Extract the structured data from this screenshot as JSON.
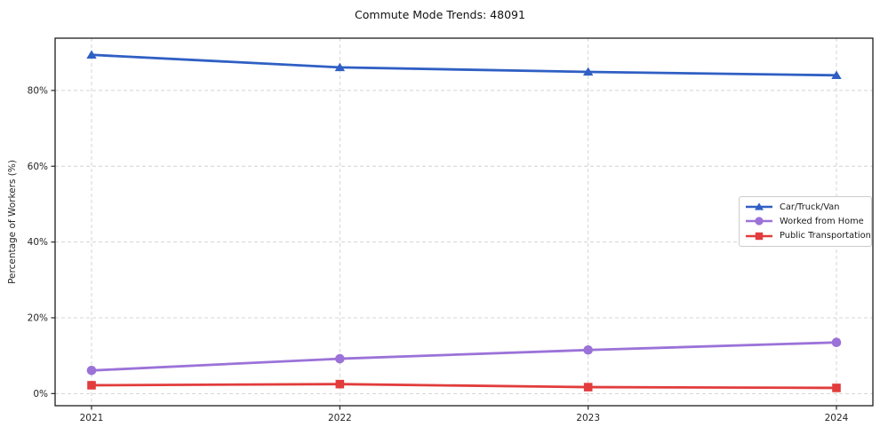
{
  "chart_data": {
    "type": "line",
    "title": "Commute Mode Trends: 48091",
    "xlabel": "",
    "ylabel": "Percentage of Workers (%)",
    "x": [
      2021,
      2022,
      2023,
      2024
    ],
    "x_tick_labels": [
      "2021",
      "2022",
      "2023",
      "2024"
    ],
    "y_ticks": [
      0,
      20,
      40,
      60,
      80
    ],
    "y_tick_labels": [
      "0%",
      "20%",
      "40%",
      "60%",
      "80%"
    ],
    "ylim": [
      -3.2,
      93.8
    ],
    "grid": true,
    "grid_style": "dashed",
    "legend_position": "center-right",
    "series": [
      {
        "name": "Car/Truck/Van",
        "color": "#2f5fc4",
        "marker": "triangle-up",
        "values": [
          89.4,
          86.1,
          84.9,
          84.0
        ]
      },
      {
        "name": "Worked from Home",
        "color": "#9b72d8",
        "marker": "circle",
        "values": [
          6.1,
          9.2,
          11.5,
          13.5
        ]
      },
      {
        "name": "Public Transportation",
        "color": "#e23c3c",
        "marker": "square",
        "values": [
          2.2,
          2.5,
          1.7,
          1.5
        ]
      }
    ],
    "colors": {
      "grid": "#d4d4d4",
      "spine": "#1c1c1c",
      "tick_text": "#262626",
      "background": "#ffffff"
    }
  }
}
